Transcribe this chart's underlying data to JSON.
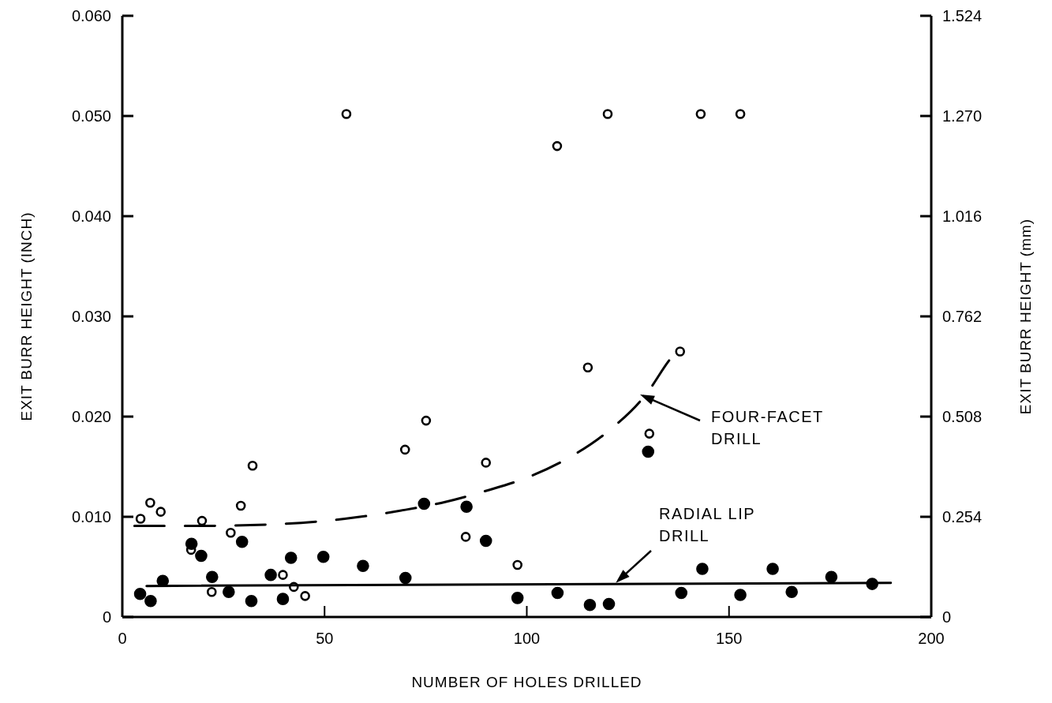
{
  "chart_data": {
    "type": "scatter",
    "xlabel": "NUMBER OF HOLES DRILLED",
    "ylabel": "EXIT BURR HEIGHT (INCH)",
    "y2label": "EXIT BURR HEIGHT (mm)",
    "xlim": [
      0,
      200
    ],
    "xticks": [
      0,
      50,
      100,
      150,
      200
    ],
    "ylim": [
      0,
      0.06
    ],
    "yticks": [
      0,
      {
        "value": 0.01,
        "label": "0.010"
      },
      {
        "value": 0.02,
        "label": "0.020"
      },
      {
        "value": 0.03,
        "label": "0.030"
      },
      {
        "value": 0.04,
        "label": "0.040"
      },
      {
        "value": 0.05,
        "label": "0.050"
      },
      {
        "value": 0.06,
        "label": "0.060"
      }
    ],
    "y2lim": [
      0,
      1.524
    ],
    "y2ticks": [
      0,
      0.254,
      0.508,
      0.762,
      1.016,
      {
        "value": 1.27,
        "label": "1.270"
      },
      1.524
    ],
    "grid": false,
    "marker": "circle",
    "series": [
      {
        "color": "#ffffff",
        "x": [
          4.5,
          6.9,
          9.5,
          17.0,
          19.7,
          22.1,
          26.8,
          29.3,
          32.2,
          39.7,
          42.4,
          45.2,
          55.4,
          69.9,
          75.1,
          84.9,
          89.9,
          97.7,
          107.5,
          115.1,
          120.0,
          130.3,
          137.9,
          143.0,
          152.8
        ],
        "values": [
          0.0098,
          0.0114,
          0.0105,
          0.0067,
          0.0096,
          0.0025,
          0.0084,
          0.0111,
          0.0151,
          0.0042,
          0.003,
          0.0021,
          0.0502,
          0.0167,
          0.0196,
          0.008,
          0.0154,
          0.0052,
          0.047,
          0.0249,
          0.0502,
          0.0183,
          0.0265,
          0.0502,
          0.0502
        ]
      },
      {
        "color": "#000000",
        "x": [
          4.4,
          7.0,
          10.0,
          17.1,
          19.5,
          22.2,
          26.3,
          29.6,
          31.9,
          36.7,
          39.7,
          41.7,
          49.7,
          59.5,
          70.0,
          74.6,
          85.1,
          89.9,
          97.7,
          107.6,
          115.6,
          120.3,
          130.0,
          138.2,
          143.4,
          152.8,
          160.8,
          165.5,
          175.3,
          185.4
        ],
        "values": [
          0.0023,
          0.0016,
          0.0036,
          0.0073,
          0.0061,
          0.004,
          0.0025,
          0.0075,
          0.0016,
          0.0042,
          0.0018,
          0.0059,
          0.006,
          0.0051,
          0.0039,
          0.0113,
          0.011,
          0.0076,
          0.0019,
          0.0024,
          0.0012,
          0.0013,
          0.0165,
          0.0024,
          0.0048,
          0.0022,
          0.0048,
          0.0025,
          0.004,
          0.0033
        ]
      },
      {
        "type": "line",
        "color": "#000000",
        "line_style": "dashed",
        "marker": "none",
        "x": [
          3,
          20,
          40,
          55,
          70,
          80,
          90,
          100,
          110,
          120,
          130,
          135,
          138
        ],
        "values": [
          0.0091,
          0.0091,
          0.0093,
          0.0098,
          0.0107,
          0.0115,
          0.0126,
          0.0139,
          0.0158,
          0.0185,
          0.0225,
          0.0255,
          0.027
        ]
      },
      {
        "type": "line",
        "color": "#000000",
        "line_style": "solid",
        "marker": "none",
        "x": [
          6,
          190
        ],
        "values": [
          0.0031,
          0.0034
        ]
      }
    ],
    "annotations": [
      {
        "text": "FOUR-FACET\nDRILL",
        "x": 128,
        "y": 0.0222
      },
      {
        "text": "RADIAL LIP\nDRILL",
        "x": 122,
        "y": 0.0034
      }
    ]
  }
}
